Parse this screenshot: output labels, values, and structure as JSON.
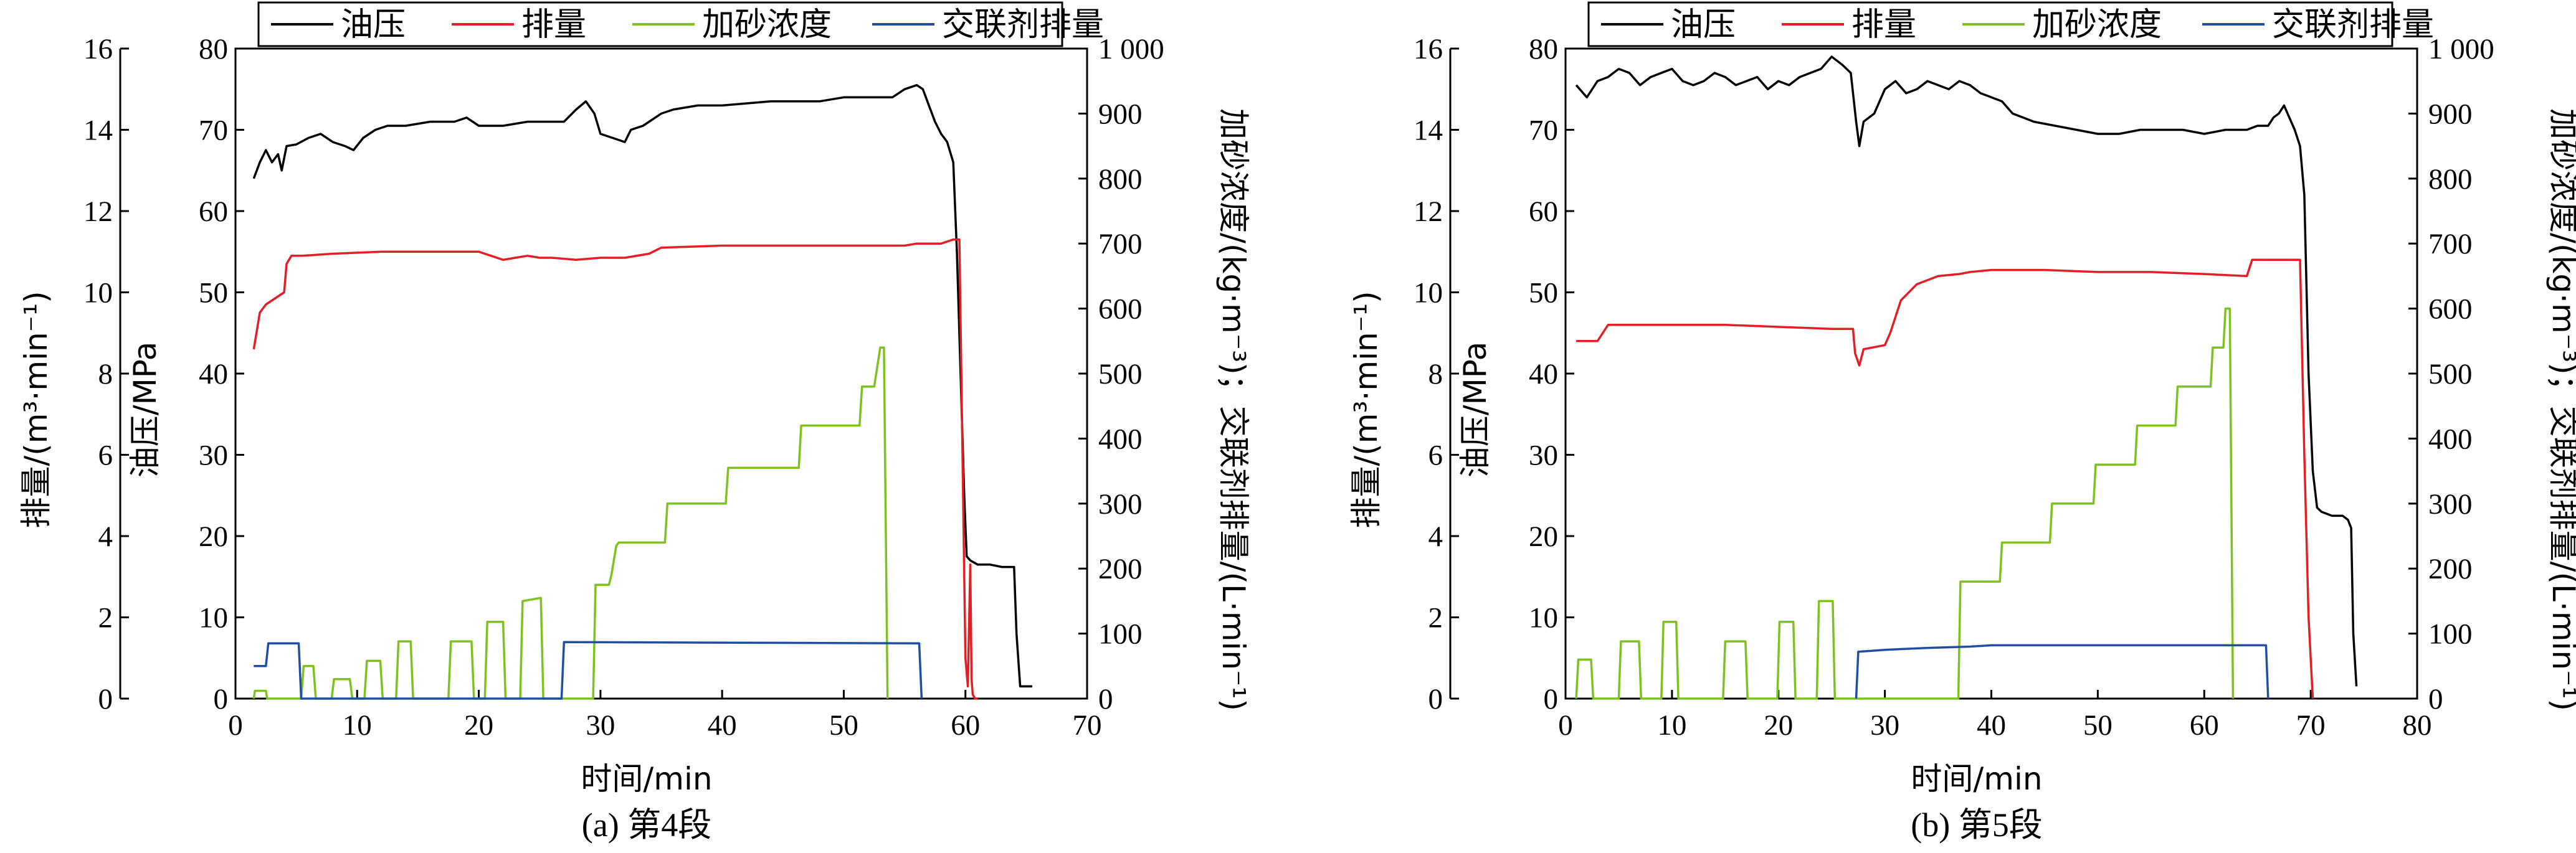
{
  "legend": {
    "oil": "油压",
    "rate": "排量",
    "sand": "加砂浓度",
    "xl": "交联剂排量"
  },
  "colors": {
    "oil": "#000000",
    "rate": "#e31e24",
    "sand": "#7dc21e",
    "xl": "#1f4ea3"
  },
  "chart_data": [
    {
      "type": "line",
      "caption": "(a) 第4段",
      "xlabel": "时间/min",
      "ylabel_rate": "排量/(m³·min⁻¹)",
      "ylabel_oil": "油压/MPa",
      "ylabel_right": "加砂浓度/(kg·m⁻³)；交联剂排量/(L·min⁻¹)",
      "xlim": [
        0,
        70
      ],
      "xticks": [
        0,
        10,
        20,
        30,
        40,
        50,
        60,
        70
      ],
      "rate_lim": [
        0,
        16
      ],
      "rate_ticks": [
        0,
        2,
        4,
        6,
        8,
        10,
        12,
        14,
        16
      ],
      "oil_lim": [
        0,
        80
      ],
      "oil_ticks": [
        0,
        10,
        20,
        30,
        40,
        50,
        60,
        70,
        80
      ],
      "right_lim": [
        0,
        1000
      ],
      "right_ticks": [
        0,
        100,
        200,
        300,
        400,
        500,
        600,
        700,
        800,
        900
      ],
      "right_top_tick": "1 000",
      "series": [
        {
          "name": "油压",
          "key": "oil",
          "axis": "oil",
          "x": [
            1.5,
            2,
            2.5,
            3,
            3.5,
            3.8,
            4.2,
            5,
            6,
            7,
            8,
            9,
            9.7,
            10.5,
            11.5,
            12.5,
            14,
            16,
            18,
            19,
            20,
            22,
            24,
            25,
            26,
            27,
            28,
            28.8,
            29.5,
            30,
            31,
            32,
            32.5,
            33.5,
            35,
            36,
            38,
            40,
            44,
            48,
            50,
            52,
            53,
            54,
            55,
            56,
            56.5,
            57,
            57.5,
            58,
            58.5,
            59,
            59.3,
            59.6,
            59.9,
            60.1,
            60.4,
            61,
            62,
            63,
            64,
            64.2,
            64.5,
            65,
            65.5
          ],
          "y": [
            64,
            66,
            67.5,
            66,
            67,
            65,
            68,
            68.2,
            69,
            69.5,
            68.5,
            68,
            67.5,
            69,
            70,
            70.5,
            70.5,
            71,
            71,
            71.5,
            70.5,
            70.5,
            71,
            71,
            71,
            71,
            72.5,
            73.5,
            72,
            69.5,
            69,
            68.5,
            70,
            70.5,
            72,
            72.5,
            73,
            73,
            73.5,
            73.5,
            74,
            74,
            74,
            74,
            75,
            75.5,
            75,
            73,
            71,
            69.5,
            68.5,
            66,
            55,
            40,
            25,
            17.5,
            17,
            16.5,
            16.5,
            16.2,
            16.2,
            8,
            1.5,
            1.5,
            1.5
          ]
        },
        {
          "name": "排量",
          "key": "rate",
          "axis": "rate",
          "x": [
            1.5,
            2,
            2.5,
            3,
            4,
            4.2,
            4.6,
            5.5,
            8,
            12,
            16,
            20,
            21,
            22,
            23,
            24,
            25,
            26,
            28,
            30,
            32,
            34,
            35,
            40,
            45,
            50,
            55,
            56,
            58,
            59,
            59.5,
            60,
            60.2,
            60.4,
            60.5,
            60.6,
            60.8,
            61
          ],
          "y": [
            8.6,
            9.5,
            9.7,
            9.8,
            10,
            10.7,
            10.9,
            10.9,
            10.95,
            11,
            11,
            11,
            10.9,
            10.8,
            10.85,
            10.9,
            10.85,
            10.85,
            10.8,
            10.85,
            10.85,
            10.95,
            11.1,
            11.15,
            11.15,
            11.15,
            11.15,
            11.2,
            11.2,
            11.3,
            11.3,
            1,
            0.3,
            3.3,
            0.5,
            0.1,
            0,
            0
          ]
        },
        {
          "name": "加砂浓度",
          "key": "sand",
          "axis": "right",
          "x": [
            1.5,
            1.6,
            2.5,
            2.6,
            3,
            5.4,
            5.6,
            6.4,
            6.6,
            7.9,
            8.1,
            9.4,
            9.6,
            10.6,
            10.8,
            11.9,
            12.1,
            13.2,
            13.4,
            14.4,
            14.6,
            17.5,
            17.7,
            19.4,
            19.6,
            20.5,
            20.7,
            22,
            22.2,
            23.4,
            23.6,
            25.1,
            25.3,
            29.4,
            29.6,
            30.7,
            30.9,
            31.3,
            31.5,
            35.3,
            35.5,
            40.3,
            40.5,
            46.3,
            46.5,
            51.3,
            51.5,
            52.5,
            53,
            53.3,
            53.6
          ],
          "y": [
            0,
            12,
            12,
            0,
            0,
            0,
            50,
            50,
            0,
            0,
            30,
            30,
            0,
            0,
            58,
            58,
            0,
            0,
            88,
            88,
            0,
            0,
            88,
            88,
            0,
            0,
            118,
            118,
            0,
            0,
            150,
            155,
            0,
            0,
            175,
            175,
            190,
            235,
            240,
            240,
            300,
            300,
            355,
            355,
            420,
            420,
            480,
            480,
            540,
            540,
            0
          ]
        },
        {
          "name": "交联剂排量",
          "key": "xl",
          "axis": "right",
          "x": [
            1.5,
            2.5,
            2.7,
            5.2,
            5.4,
            26.8,
            27,
            56.2,
            56.4
          ],
          "y": [
            50,
            50,
            85,
            85,
            0,
            0,
            87,
            85,
            0
          ]
        }
      ]
    },
    {
      "type": "line",
      "caption": "(b) 第5段",
      "xlabel": "时间/min",
      "ylabel_rate": "排量/(m³·min⁻¹)",
      "ylabel_oil": "油压/MPa",
      "ylabel_right": "加砂浓度/(kg·m⁻³)；交联剂排量/(L·min⁻¹)",
      "xlim": [
        0,
        80
      ],
      "xticks": [
        0,
        10,
        20,
        30,
        40,
        50,
        60,
        70,
        80
      ],
      "rate_lim": [
        0,
        16
      ],
      "rate_ticks": [
        0,
        2,
        4,
        6,
        8,
        10,
        12,
        14,
        16
      ],
      "oil_lim": [
        0,
        80
      ],
      "oil_ticks": [
        0,
        10,
        20,
        30,
        40,
        50,
        60,
        70,
        80
      ],
      "right_lim": [
        0,
        1000
      ],
      "right_ticks": [
        0,
        100,
        200,
        300,
        400,
        500,
        600,
        700,
        800,
        900
      ],
      "right_top_tick": "1 000",
      "series": [
        {
          "name": "油压",
          "key": "oil",
          "axis": "oil",
          "x": [
            1,
            2,
            3,
            4,
            5,
            6,
            7,
            8,
            9,
            10,
            11,
            12,
            13,
            14,
            15,
            16,
            17,
            18,
            19,
            20,
            21,
            22,
            23,
            24,
            25,
            26,
            26.8,
            27.3,
            27.6,
            28,
            29,
            30,
            31,
            32,
            33,
            34,
            35,
            36,
            37,
            38,
            39,
            40,
            41,
            42,
            43,
            44,
            46,
            48,
            50,
            52,
            54,
            56,
            58,
            60,
            62,
            64,
            65,
            66,
            66.5,
            67,
            67.5,
            68,
            68.5,
            69,
            69.4,
            69.8,
            70.2,
            70.6,
            71,
            72,
            73,
            73.5,
            73.8,
            74,
            74.3
          ],
          "y": [
            75.5,
            74,
            76,
            76.5,
            77.5,
            77,
            75.5,
            76.5,
            77,
            77.5,
            76,
            75.5,
            76,
            77,
            76.5,
            75.5,
            76,
            76.5,
            75,
            76,
            75.5,
            76.5,
            77,
            77.5,
            79,
            78,
            77,
            71,
            68,
            71,
            72,
            75,
            76,
            74.5,
            75,
            76,
            75.5,
            75,
            76,
            75.5,
            74.5,
            74,
            73.5,
            72,
            71.5,
            71,
            70.5,
            70,
            69.5,
            69.5,
            70,
            70,
            70,
            69.5,
            70,
            70,
            70.5,
            70.5,
            71.5,
            72,
            73,
            71.5,
            70,
            68,
            62,
            40,
            28,
            23.5,
            23,
            22.5,
            22.5,
            22,
            21,
            8,
            1.5
          ]
        },
        {
          "name": "排量",
          "key": "rate",
          "axis": "rate",
          "x": [
            1,
            3,
            3.5,
            4,
            8,
            15,
            20,
            25,
            27,
            27.2,
            27.6,
            28,
            30,
            30.5,
            31.5,
            33,
            35,
            37,
            38,
            40,
            45,
            50,
            55,
            60,
            64,
            64.5,
            66,
            68,
            69,
            69.4,
            69.8,
            70.2
          ],
          "y": [
            8.8,
            8.8,
            9,
            9.2,
            9.2,
            9.2,
            9.15,
            9.1,
            9.1,
            8.5,
            8.2,
            8.6,
            8.7,
            9,
            9.8,
            10.2,
            10.4,
            10.45,
            10.5,
            10.55,
            10.55,
            10.5,
            10.5,
            10.45,
            10.4,
            10.8,
            10.8,
            10.8,
            10.8,
            6,
            2,
            0
          ]
        },
        {
          "name": "加砂浓度",
          "key": "sand",
          "axis": "right",
          "x": [
            1,
            1.2,
            2.4,
            2.6,
            5.0,
            5.2,
            6.9,
            7.1,
            9.0,
            9.2,
            10.4,
            10.6,
            14.8,
            15,
            16.9,
            17.1,
            19.9,
            20.1,
            21.4,
            21.6,
            23.6,
            23.8,
            25.1,
            25.3,
            36.9,
            37.1,
            40.8,
            41,
            45.5,
            45.7,
            49.6,
            49.8,
            53.5,
            53.7,
            57.3,
            57.5,
            60.6,
            60.8,
            61.8,
            62,
            62.4,
            62.7
          ],
          "y": [
            0,
            60,
            60,
            0,
            0,
            88,
            88,
            0,
            0,
            118,
            118,
            0,
            0,
            88,
            88,
            0,
            0,
            118,
            118,
            0,
            0,
            150,
            150,
            0,
            0,
            180,
            180,
            240,
            240,
            300,
            300,
            360,
            360,
            420,
            420,
            480,
            480,
            540,
            540,
            600,
            600,
            0
          ]
        },
        {
          "name": "交联剂排量",
          "key": "xl",
          "axis": "right",
          "x": [
            27.3,
            27.5,
            30,
            34,
            38,
            40,
            65.8,
            66
          ],
          "y": [
            0,
            72,
            75,
            78,
            80,
            82,
            82,
            0
          ]
        }
      ]
    }
  ]
}
